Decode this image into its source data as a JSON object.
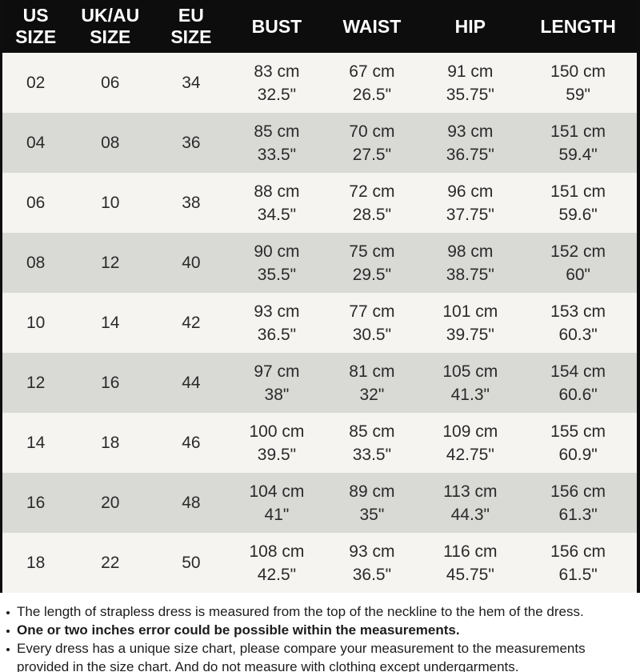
{
  "colors": {
    "header_bg": "#0d0d0d",
    "header_text": "#ffffff",
    "row_light": "#f6f4f1",
    "row_gray": "#d9d9d6",
    "body_text": "#2a2a2a",
    "note_text": "#1c1c1c"
  },
  "table": {
    "columns": [
      {
        "label": "US SIZE",
        "lines": [
          "US",
          "SIZE"
        ]
      },
      {
        "label": "UK/AU SIZE",
        "lines": [
          "UK/AU",
          "SIZE"
        ]
      },
      {
        "label": "EU SIZE",
        "lines": [
          "EU",
          "SIZE"
        ]
      },
      {
        "label": "BUST",
        "lines": [
          "BUST"
        ]
      },
      {
        "label": "WAIST",
        "lines": [
          "WAIST"
        ]
      },
      {
        "label": "HIP",
        "lines": [
          "HIP"
        ]
      },
      {
        "label": "LENGTH",
        "lines": [
          "LENGTH"
        ]
      }
    ],
    "rows": [
      {
        "us": "02",
        "uk": "06",
        "eu": "34",
        "bust": {
          "cm": "83 cm",
          "in": "32.5\""
        },
        "waist": {
          "cm": "67 cm",
          "in": "26.5\""
        },
        "hip": {
          "cm": "91 cm",
          "in": "35.75\""
        },
        "length": {
          "cm": "150 cm",
          "in": "59\""
        }
      },
      {
        "us": "04",
        "uk": "08",
        "eu": "36",
        "bust": {
          "cm": "85 cm",
          "in": "33.5\""
        },
        "waist": {
          "cm": "70 cm",
          "in": "27.5\""
        },
        "hip": {
          "cm": "93 cm",
          "in": "36.75\""
        },
        "length": {
          "cm": "151 cm",
          "in": "59.4\""
        }
      },
      {
        "us": "06",
        "uk": "10",
        "eu": "38",
        "bust": {
          "cm": "88 cm",
          "in": "34.5\""
        },
        "waist": {
          "cm": "72 cm",
          "in": "28.5\""
        },
        "hip": {
          "cm": "96 cm",
          "in": "37.75\""
        },
        "length": {
          "cm": "151 cm",
          "in": "59.6\""
        }
      },
      {
        "us": "08",
        "uk": "12",
        "eu": "40",
        "bust": {
          "cm": "90 cm",
          "in": "35.5\""
        },
        "waist": {
          "cm": "75 cm",
          "in": "29.5\""
        },
        "hip": {
          "cm": "98 cm",
          "in": "38.75\""
        },
        "length": {
          "cm": "152 cm",
          "in": "60\""
        }
      },
      {
        "us": "10",
        "uk": "14",
        "eu": "42",
        "bust": {
          "cm": "93 cm",
          "in": "36.5\""
        },
        "waist": {
          "cm": "77 cm",
          "in": "30.5\""
        },
        "hip": {
          "cm": "101 cm",
          "in": "39.75\""
        },
        "length": {
          "cm": "153 cm",
          "in": "60.3\""
        }
      },
      {
        "us": "12",
        "uk": "16",
        "eu": "44",
        "bust": {
          "cm": "97 cm",
          "in": "38\""
        },
        "waist": {
          "cm": "81 cm",
          "in": "32\""
        },
        "hip": {
          "cm": "105 cm",
          "in": "41.3\""
        },
        "length": {
          "cm": "154 cm",
          "in": "60.6\""
        }
      },
      {
        "us": "14",
        "uk": "18",
        "eu": "46",
        "bust": {
          "cm": "100 cm",
          "in": "39.5\""
        },
        "waist": {
          "cm": "85 cm",
          "in": "33.5\""
        },
        "hip": {
          "cm": "109 cm",
          "in": "42.75\""
        },
        "length": {
          "cm": "155 cm",
          "in": "60.9\""
        }
      },
      {
        "us": "16",
        "uk": "20",
        "eu": "48",
        "bust": {
          "cm": "104 cm",
          "in": "41\""
        },
        "waist": {
          "cm": "89 cm",
          "in": "35\""
        },
        "hip": {
          "cm": "113 cm",
          "in": "44.3\""
        },
        "length": {
          "cm": "156 cm",
          "in": "61.3\""
        }
      },
      {
        "us": "18",
        "uk": "22",
        "eu": "50",
        "bust": {
          "cm": "108 cm",
          "in": "42.5\""
        },
        "waist": {
          "cm": "93 cm",
          "in": "36.5\""
        },
        "hip": {
          "cm": "116 cm",
          "in": "45.75\""
        },
        "length": {
          "cm": "156 cm",
          "in": "61.5\""
        }
      }
    ]
  },
  "notes": [
    {
      "text": "The length of strapless dress is measured from the top of the neckline to the hem of the dress.",
      "bold": false
    },
    {
      "text": "One or two inches error could be possible within the measurements.",
      "bold": true
    },
    {
      "text": "Every dress has a unique size chart, please compare your measurement to the measurements provided in the size chart. And do not measure with clothing except undergarments.",
      "bold": false
    }
  ]
}
